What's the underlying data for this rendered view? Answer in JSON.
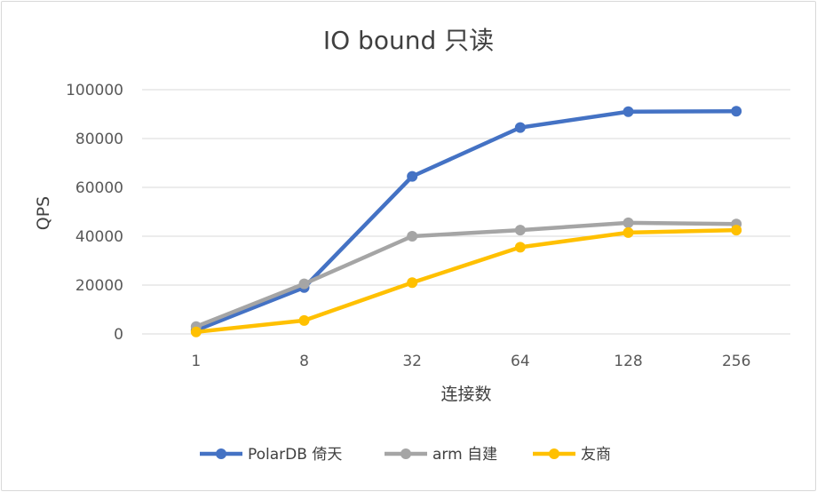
{
  "chart_data": {
    "type": "line",
    "title": "IO bound 只读",
    "xlabel": "连接数",
    "ylabel": "QPS",
    "categories": [
      "1",
      "8",
      "32",
      "64",
      "128",
      "256"
    ],
    "ylim": [
      0,
      100000
    ],
    "yticks": [
      0,
      20000,
      40000,
      60000,
      80000,
      100000
    ],
    "ytick_labels": [
      "0",
      "20000",
      "40000",
      "60000",
      "80000",
      "100000"
    ],
    "grid": true,
    "legend_position": "bottom",
    "series": [
      {
        "name": "PolarDB 倚天",
        "color": "#4472c4",
        "values": [
          1500,
          19000,
          64500,
          84500,
          91000,
          91200
        ]
      },
      {
        "name": "arm 自建",
        "color": "#a5a5a5",
        "values": [
          3000,
          20500,
          40000,
          42500,
          45500,
          45000
        ]
      },
      {
        "name": "友商",
        "color": "#ffc000",
        "values": [
          800,
          5500,
          21000,
          35500,
          41500,
          42500
        ]
      }
    ]
  }
}
